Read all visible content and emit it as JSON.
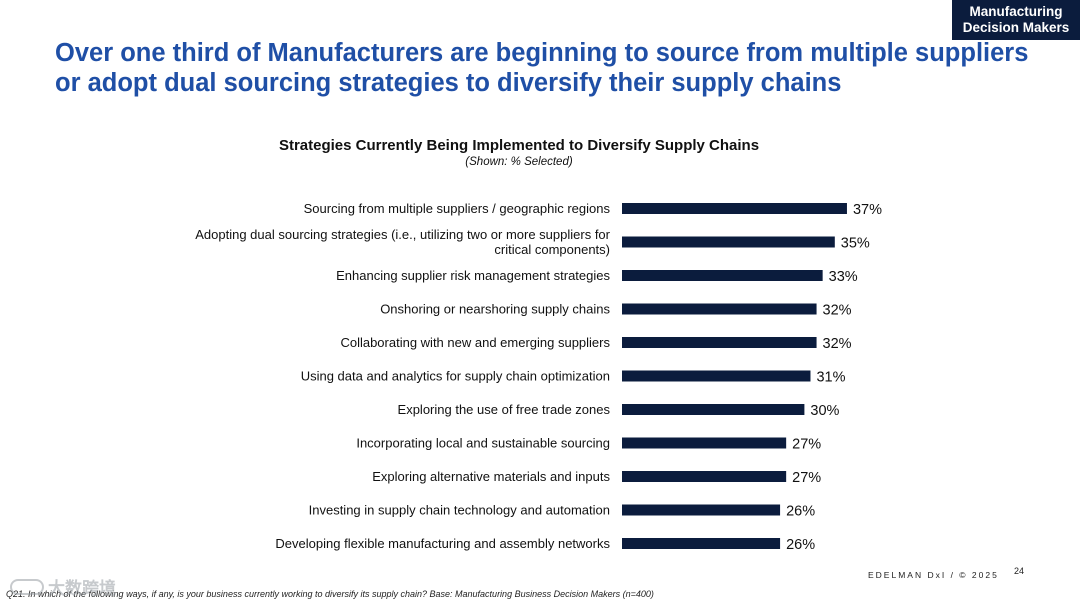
{
  "badge": {
    "line1": "Manufacturing",
    "line2": "Decision Makers"
  },
  "headline": "Over one third of Manufacturers are beginning to source from multiple suppliers or adopt dual sourcing strategies to diversify their supply chains",
  "colors": {
    "accent": "#1f4fa6",
    "bar": "#0b1c3d",
    "badge": "#0b1c3d"
  },
  "chart_data": {
    "type": "bar",
    "orientation": "horizontal",
    "title": "Strategies Currently Being Implemented to Diversify Supply Chains",
    "subtitle": "(Shown: % Selected)",
    "categories": [
      [
        "Sourcing from multiple suppliers / geographic regions"
      ],
      [
        "Adopting dual sourcing strategies (i.e., utilizing two or more suppliers for",
        "critical components)"
      ],
      [
        "Enhancing supplier risk management strategies"
      ],
      [
        "Onshoring or nearshoring supply chains"
      ],
      [
        "Collaborating with new and emerging suppliers"
      ],
      [
        "Using data and analytics for supply chain optimization"
      ],
      [
        "Exploring the use of free trade zones"
      ],
      [
        "Incorporating local and sustainable sourcing"
      ],
      [
        "Exploring alternative materials and inputs"
      ],
      [
        "Investing in supply chain technology and automation"
      ],
      [
        "Developing flexible manufacturing and assembly networks"
      ]
    ],
    "values": [
      37,
      35,
      33,
      32,
      32,
      31,
      30,
      27,
      27,
      26,
      26
    ],
    "data_labels": [
      "37%",
      "35%",
      "33%",
      "32%",
      "32%",
      "31%",
      "30%",
      "27%",
      "27%",
      "26%",
      "26%"
    ],
    "xlim": [
      0,
      100
    ],
    "grid": false,
    "legend": "none"
  },
  "footer": {
    "brand": "EDELMAN DxI / © 2025",
    "page": "24",
    "note": "Q21. In which of the following ways, if any, is your business currently working to diversify its supply chain? Base: Manufacturing Business Decision Makers  (n=400)",
    "watermark": "大数跨境"
  }
}
